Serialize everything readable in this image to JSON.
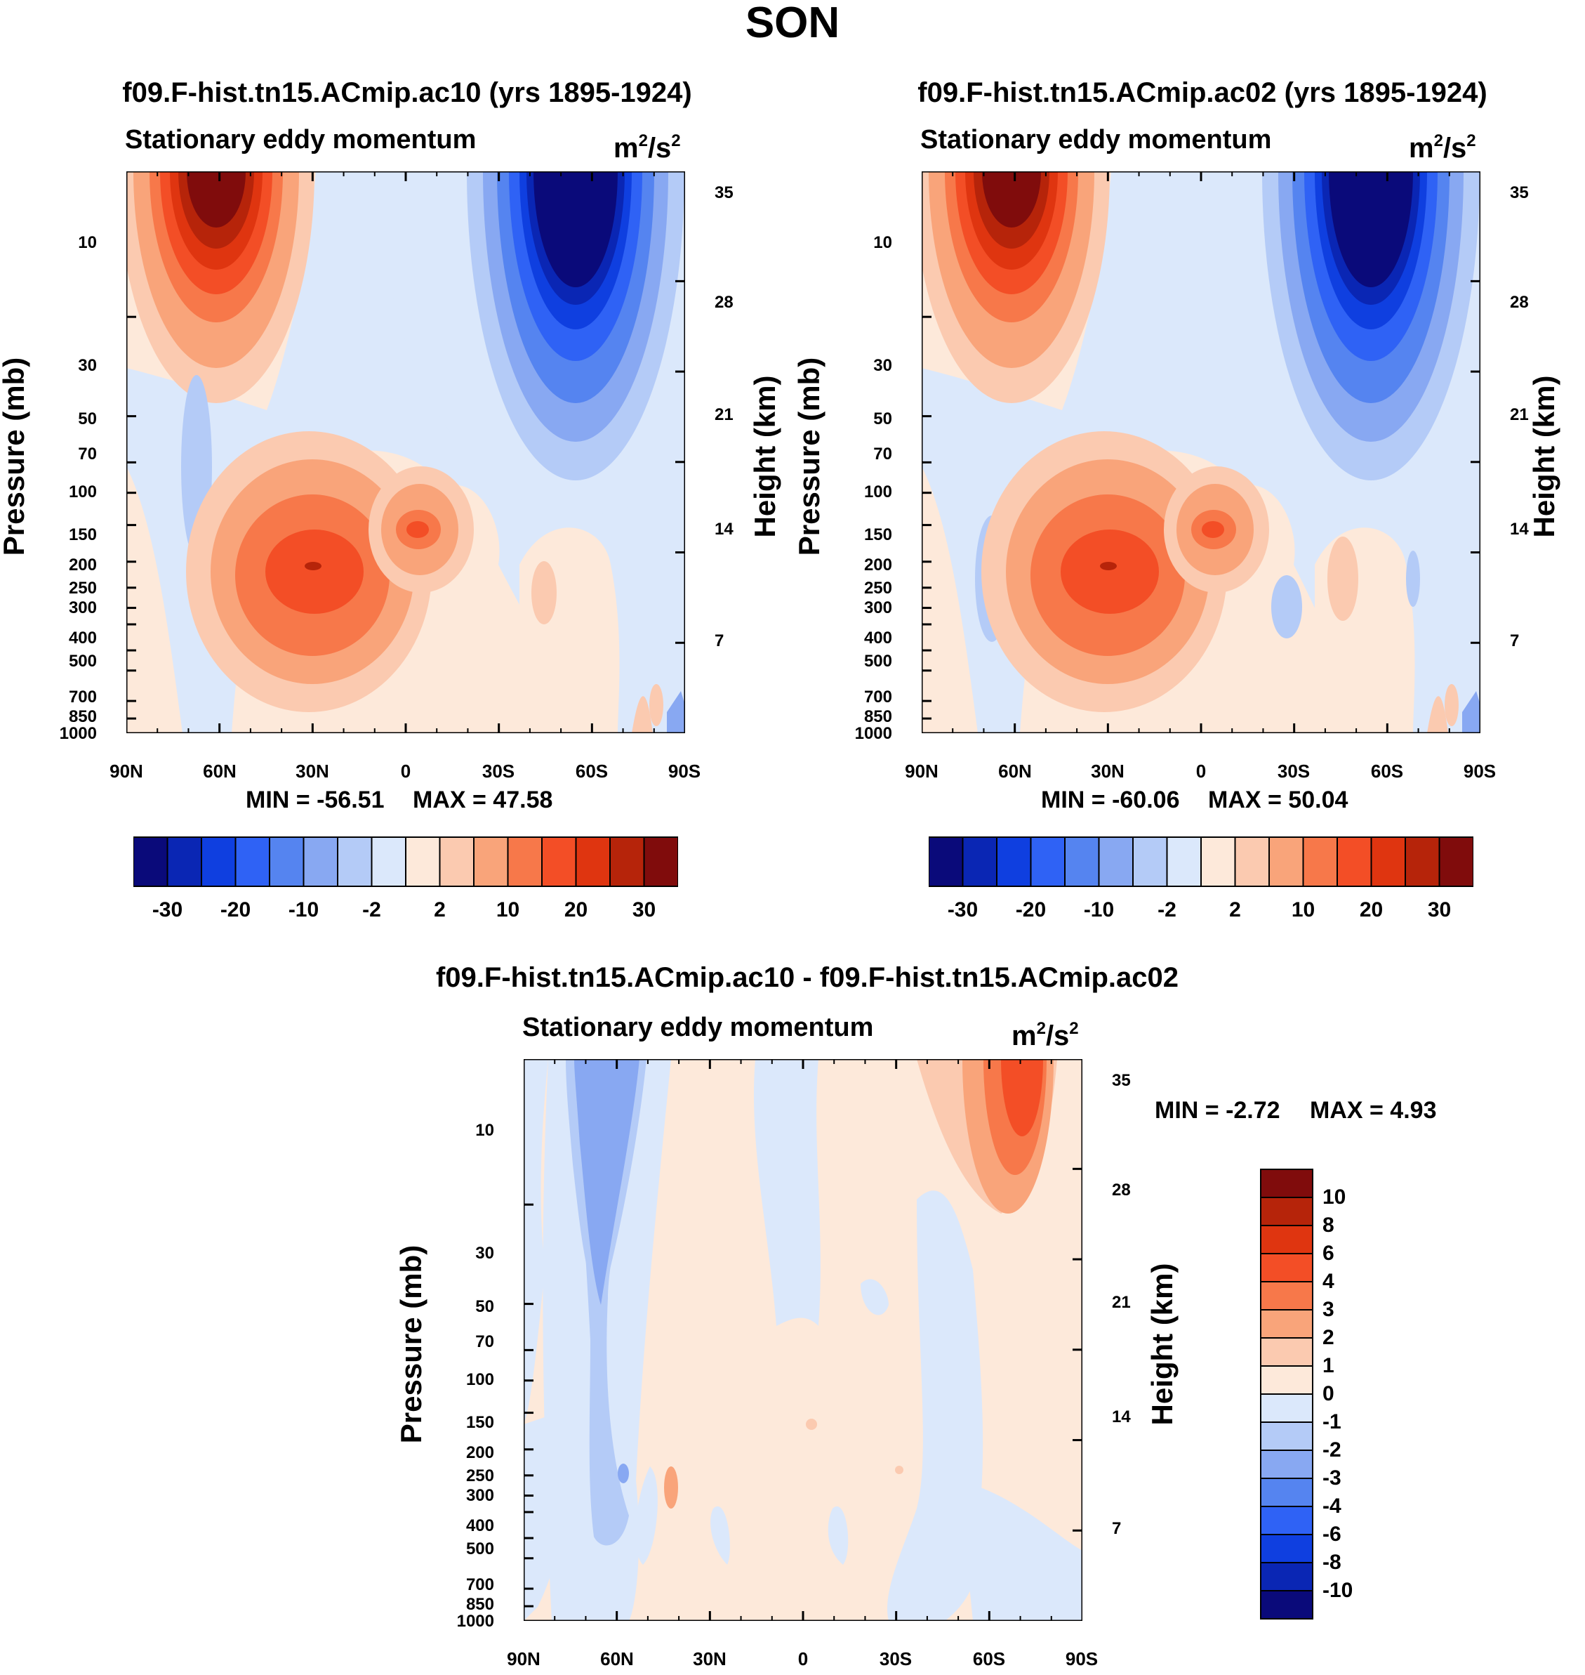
{
  "figure": {
    "title": "SON",
    "variable": "Stationary eddy momentum",
    "units_base": "m",
    "units_exp1": "2",
    "units_sep": "/s",
    "units_exp2": "2",
    "y_axis_label": "Pressure (mb)",
    "y2_axis_label": "Height (km)"
  },
  "chart_data": [
    {
      "type": "contour",
      "panel": "left",
      "title": "f09.F-hist.tn15.ACmip.ac10 (yrs 1895-1924)",
      "subtitle": "Stationary eddy momentum",
      "units": "m2/s2",
      "xlabel": "",
      "ylabel": "Pressure (mb)",
      "y2label": "Height (km)",
      "x_ticks": [
        "90N",
        "60N",
        "30N",
        "0",
        "30S",
        "60S",
        "90S"
      ],
      "x_values": [
        90,
        60,
        30,
        0,
        -30,
        -60,
        -90
      ],
      "y_ticks": [
        10,
        30,
        50,
        70,
        100,
        150,
        200,
        250,
        300,
        400,
        500,
        700,
        850,
        1000
      ],
      "y_tick_labels": [
        "10",
        "30",
        "50",
        "70",
        "100",
        "150",
        "200",
        "250",
        "300",
        "400",
        "500",
        "700",
        "850",
        "1000"
      ],
      "y2_ticks": [
        35,
        28,
        21,
        14,
        7
      ],
      "y2_tick_labels": [
        "35",
        "28",
        "21",
        "14",
        "7"
      ],
      "min_label": "MIN = -56.51",
      "max_label": "MAX =  47.58",
      "min": -56.51,
      "max": 47.58,
      "features": [
        {
          "name": "NH stratospheric positive max",
          "lat": 60,
          "pressure_mb": 4,
          "value": 35
        },
        {
          "name": "SH stratospheric negative min",
          "lat": -58,
          "pressure_mb": 5,
          "value": -35
        },
        {
          "name": "NH subtropical jet positive",
          "lat": 30,
          "pressure_mb": 200,
          "value": 20
        },
        {
          "name": "Tropical positive",
          "lat": -5,
          "pressure_mb": 150,
          "value": 10
        }
      ]
    },
    {
      "type": "contour",
      "panel": "right",
      "title": "f09.F-hist.tn15.ACmip.ac02 (yrs 1895-1924)",
      "subtitle": "Stationary eddy momentum",
      "units": "m2/s2",
      "xlabel": "",
      "ylabel": "Pressure (mb)",
      "y2label": "Height (km)",
      "x_ticks": [
        "90N",
        "60N",
        "30N",
        "0",
        "30S",
        "60S",
        "90S"
      ],
      "x_values": [
        90,
        60,
        30,
        0,
        -30,
        -60,
        -90
      ],
      "y_ticks": [
        10,
        30,
        50,
        70,
        100,
        150,
        200,
        250,
        300,
        400,
        500,
        700,
        850,
        1000
      ],
      "y_tick_labels": [
        "10",
        "30",
        "50",
        "70",
        "100",
        "150",
        "200",
        "250",
        "300",
        "400",
        "500",
        "700",
        "850",
        "1000"
      ],
      "y2_ticks": [
        35,
        28,
        21,
        14,
        7
      ],
      "y2_tick_labels": [
        "35",
        "28",
        "21",
        "14",
        "7"
      ],
      "min_label": "MIN = -60.06",
      "max_label": "MAX =  50.04",
      "min": -60.06,
      "max": 50.04,
      "features": [
        {
          "name": "NH stratospheric positive max",
          "lat": 60,
          "pressure_mb": 4,
          "value": 35
        },
        {
          "name": "SH stratospheric negative min",
          "lat": -58,
          "pressure_mb": 5,
          "value": -35
        },
        {
          "name": "NH subtropical jet positive",
          "lat": 30,
          "pressure_mb": 200,
          "value": 20
        },
        {
          "name": "Tropical positive",
          "lat": -5,
          "pressure_mb": 150,
          "value": 10
        }
      ]
    },
    {
      "type": "contour",
      "panel": "difference",
      "title": "f09.F-hist.tn15.ACmip.ac10 - f09.F-hist.tn15.ACmip.ac02",
      "subtitle": "Stationary eddy momentum",
      "units": "m2/s2",
      "xlabel": "",
      "ylabel": "Pressure (mb)",
      "y2label": "Height (km)",
      "x_ticks": [
        "90N",
        "60N",
        "30N",
        "0",
        "30S",
        "60S",
        "90S"
      ],
      "x_values": [
        90,
        60,
        30,
        0,
        -30,
        -60,
        -90
      ],
      "y_ticks": [
        10,
        30,
        50,
        70,
        100,
        150,
        200,
        250,
        300,
        400,
        500,
        700,
        850,
        1000
      ],
      "y_tick_labels": [
        "10",
        "30",
        "50",
        "70",
        "100",
        "150",
        "200",
        "250",
        "300",
        "400",
        "500",
        "700",
        "850",
        "1000"
      ],
      "y2_ticks": [
        35,
        28,
        21,
        14,
        7
      ],
      "y2_tick_labels": [
        "35",
        "28",
        "21",
        "14",
        "7"
      ],
      "min_label": "MIN =  -2.72",
      "max_label": "MAX =   4.93",
      "min": -2.72,
      "max": 4.93,
      "features": [
        {
          "name": "NH mid-latitude negative column",
          "lat": 62,
          "pressure_mb": 20,
          "value": -2
        },
        {
          "name": "SH high-latitude stratospheric positive",
          "lat": -73,
          "pressure_mb": 5,
          "value": 4
        }
      ]
    }
  ],
  "colorbars": {
    "top_levels": [
      "-30",
      "-20",
      "-10",
      "-2",
      "2",
      "10",
      "20",
      "30"
    ],
    "top_colors": [
      "#0a0a7a",
      "#0a26b4",
      "#0f3fe0",
      "#2f62f5",
      "#5584f0",
      "#88a8f2",
      "#b4cbf7",
      "#dbe8fb",
      "#fde9da",
      "#fbcab0",
      "#f9a47a",
      "#f7784a",
      "#f34e26",
      "#df3510",
      "#b6240a",
      "#800c0c"
    ],
    "diff_levels": [
      "10",
      "8",
      "6",
      "4",
      "3",
      "2",
      "1",
      "0",
      "-1",
      "-2",
      "-3",
      "-4",
      "-6",
      "-8",
      "-10"
    ],
    "diff_colors": [
      "#800c0c",
      "#b6240a",
      "#df3510",
      "#f34e26",
      "#f7784a",
      "#f9a47a",
      "#fbcab0",
      "#fde9da",
      "#dbe8fb",
      "#b4cbf7",
      "#88a8f2",
      "#5584f0",
      "#2f62f5",
      "#0f3fe0",
      "#0a26b4",
      "#0a0a7a"
    ]
  }
}
